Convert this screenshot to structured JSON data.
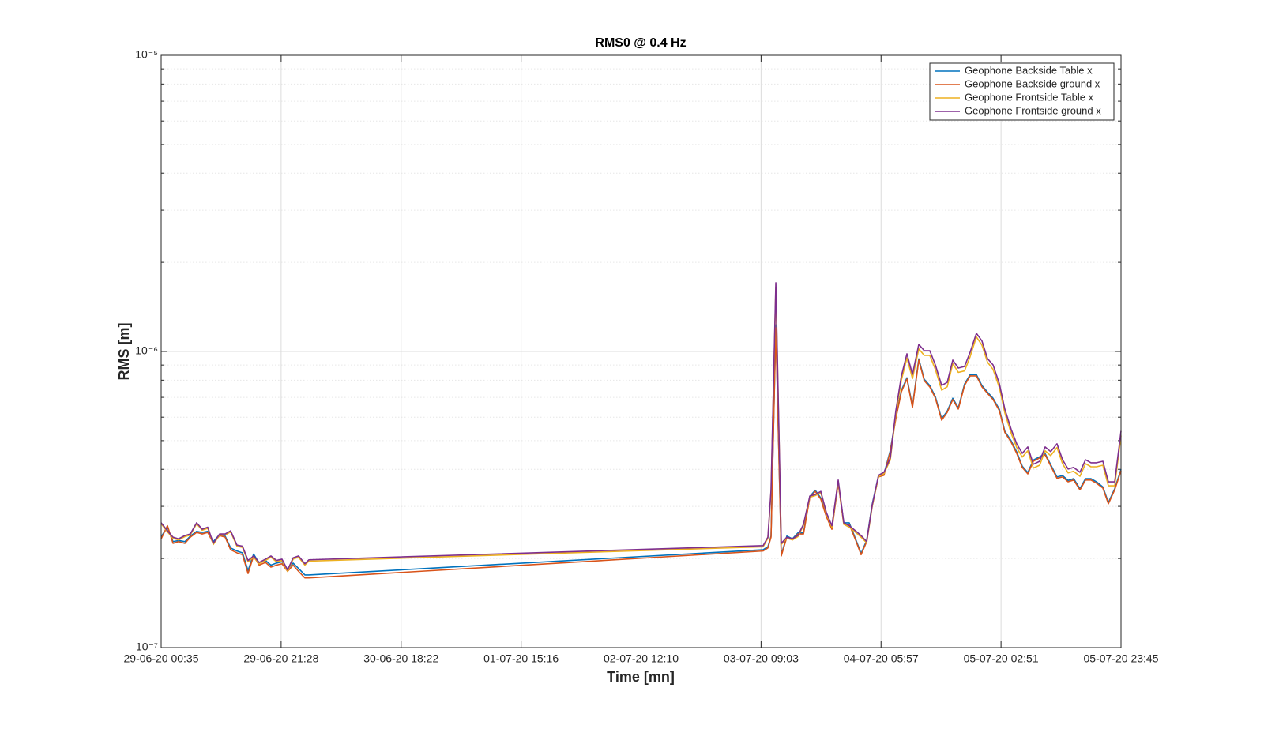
{
  "chart_data": {
    "type": "line",
    "title": "RMS0 @ 0.4 Hz",
    "x_label": "Time [mn]",
    "y_label": "RMS [m]",
    "yscale": "log",
    "grid": true,
    "legend": "northeast",
    "xlim": [
      0,
      10030
    ],
    "xticks": [
      {
        "value": 0,
        "label": "29-06-20 00:35"
      },
      {
        "value": 1253.75,
        "label": "29-06-20 21:28"
      },
      {
        "value": 2507.5,
        "label": "30-06-20 18:22"
      },
      {
        "value": 3761.25,
        "label": "01-07-20 15:16"
      },
      {
        "value": 5015,
        "label": "02-07-20 12:10"
      },
      {
        "value": 6268.75,
        "label": "03-07-20 09:03"
      },
      {
        "value": 7522.5,
        "label": "04-07-20 05:57"
      },
      {
        "value": 8776.25,
        "label": "05-07-20 02:51"
      },
      {
        "value": 10030,
        "label": "05-07-20 23:45"
      }
    ],
    "ylim": [
      1e-07,
      1e-05
    ],
    "yticks": [
      {
        "value": 1e-07,
        "label": "10⁻⁷"
      },
      {
        "value": 1e-06,
        "label": "10⁻⁶"
      },
      {
        "value": 1e-05,
        "label": "10⁻⁵"
      }
    ],
    "yminorticks": [
      2e-07,
      3e-07,
      4e-07,
      5e-07,
      6e-07,
      7e-07,
      8e-07,
      9e-07,
      2e-06,
      3e-06,
      4e-06,
      5e-06,
      6e-06,
      7e-06,
      8e-06,
      9e-06
    ],
    "x": [
      0,
      66,
      124,
      182,
      248,
      305,
      371,
      429,
      487,
      545,
      611,
      669,
      726,
      792,
      850,
      908,
      966,
      1024,
      1090,
      1147,
      1205,
      1263,
      1321,
      1379,
      1436,
      1502,
      1544,
      6290,
      6340,
      6373,
      6423,
      6480,
      6538,
      6596,
      6654,
      6712,
      6778,
      6835,
      6893,
      6951,
      7009,
      7075,
      7133,
      7190,
      7256,
      7314,
      7372,
      7430,
      7496,
      7553,
      7619,
      7677,
      7735,
      7793,
      7851,
      7917,
      7974,
      8032,
      8090,
      8156,
      8214,
      8272,
      8330,
      8395,
      8453,
      8519,
      8577,
      8635,
      8693,
      8759,
      8816,
      8882,
      8940,
      8998,
      9056,
      9114,
      9180,
      9237,
      9295,
      9361,
      9419,
      9477,
      9535,
      9601,
      9659,
      9716,
      9774,
      9840,
      9898,
      9964,
      10030
    ],
    "series": [
      {
        "name": "Geophone Backside Table x",
        "color": "#0072BD",
        "values": [
          2.37e-07,
          2.55e-07,
          2.28e-07,
          2.3e-07,
          2.28e-07,
          2.38e-07,
          2.47e-07,
          2.45e-07,
          2.47e-07,
          2.28e-07,
          2.41e-07,
          2.38e-07,
          2.17e-07,
          2.12e-07,
          2.09e-07,
          1.82e-07,
          2.07e-07,
          1.93e-07,
          1.97e-07,
          1.9e-07,
          1.93e-07,
          1.95e-07,
          1.84e-07,
          1.93e-07,
          1.85e-07,
          1.76e-07,
          1.76e-07,
          2.14e-07,
          2.19e-07,
          2.38e-07,
          1.23e-06,
          2.06e-07,
          2.38e-07,
          2.33e-07,
          2.44e-07,
          2.44e-07,
          3.24e-07,
          3.4e-07,
          3.2e-07,
          2.8e-07,
          2.53e-07,
          3.62e-07,
          2.64e-07,
          2.64e-07,
          2.33e-07,
          2.08e-07,
          2.3e-07,
          3.05e-07,
          3.81e-07,
          3.86e-07,
          4.63e-07,
          5.99e-07,
          7.38e-07,
          8.15e-07,
          6.53e-07,
          9.44e-07,
          8.05e-07,
          7.67e-07,
          7.03e-07,
          5.92e-07,
          6.29e-07,
          6.95e-07,
          6.45e-07,
          7.76e-07,
          8.35e-07,
          8.35e-07,
          7.67e-07,
          7.29e-07,
          6.95e-07,
          6.37e-07,
          5.38e-07,
          4.99e-07,
          4.58e-07,
          4.1e-07,
          3.9e-07,
          4.3e-07,
          4.41e-07,
          4.52e-07,
          4.15e-07,
          3.77e-07,
          3.81e-07,
          3.67e-07,
          3.72e-07,
          3.44e-07,
          3.72e-07,
          3.72e-07,
          3.63e-07,
          3.49e-07,
          3.09e-07,
          3.44e-07,
          4e-07
        ]
      },
      {
        "name": "Geophone Backside ground x",
        "color": "#D95319",
        "values": [
          2.33e-07,
          2.58e-07,
          2.25e-07,
          2.28e-07,
          2.25e-07,
          2.36e-07,
          2.45e-07,
          2.42e-07,
          2.45e-07,
          2.25e-07,
          2.39e-07,
          2.36e-07,
          2.14e-07,
          2.09e-07,
          2.06e-07,
          1.78e-07,
          2.04e-07,
          1.9e-07,
          1.94e-07,
          1.87e-07,
          1.9e-07,
          1.92e-07,
          1.81e-07,
          1.9e-07,
          1.81e-07,
          1.72e-07,
          1.72e-07,
          2.12e-07,
          2.17e-07,
          2.36e-07,
          1.202e-06,
          2.04e-07,
          2.36e-07,
          2.31e-07,
          2.42e-07,
          2.42e-07,
          3.21e-07,
          3.37e-07,
          3.17e-07,
          2.77e-07,
          2.51e-07,
          3.59e-07,
          2.61e-07,
          2.61e-07,
          2.31e-07,
          2.06e-07,
          2.28e-07,
          3.02e-07,
          3.77e-07,
          3.82e-07,
          4.59e-07,
          5.93e-07,
          7.31e-07,
          8.07e-07,
          6.47e-07,
          9.35e-07,
          7.97e-07,
          7.59e-07,
          6.96e-07,
          5.86e-07,
          6.23e-07,
          6.88e-07,
          6.39e-07,
          7.68e-07,
          8.27e-07,
          8.27e-07,
          7.59e-07,
          7.22e-07,
          6.88e-07,
          6.31e-07,
          5.33e-07,
          4.94e-07,
          4.53e-07,
          4.06e-07,
          3.86e-07,
          4.26e-07,
          4.37e-07,
          4.48e-07,
          4.11e-07,
          3.73e-07,
          3.77e-07,
          3.63e-07,
          3.68e-07,
          3.41e-07,
          3.68e-07,
          3.68e-07,
          3.59e-07,
          3.46e-07,
          3.06e-07,
          3.41e-07,
          3.96e-07
        ]
      },
      {
        "name": "Geophone Frontside Table x",
        "color": "#EDB120",
        "values": [
          2.62e-07,
          2.46e-07,
          2.34e-07,
          2.31e-07,
          2.37e-07,
          2.4e-07,
          2.62e-07,
          2.49e-07,
          2.53e-07,
          2.23e-07,
          2.4e-07,
          2.4e-07,
          2.46e-07,
          2.2e-07,
          2.18e-07,
          1.95e-07,
          2.02e-07,
          1.92e-07,
          1.97e-07,
          2.02e-07,
          1.95e-07,
          1.97e-07,
          1.81e-07,
          1.99e-07,
          2.02e-07,
          1.9e-07,
          1.96e-07,
          2.19e-07,
          2.34e-07,
          3.35e-07,
          1.65e-06,
          2.23e-07,
          2.34e-07,
          2.31e-07,
          2.37e-07,
          2.59e-07,
          3.22e-07,
          3.26e-07,
          3.34e-07,
          2.83e-07,
          2.55e-07,
          3.64e-07,
          2.61e-07,
          2.55e-07,
          2.45e-07,
          2.36e-07,
          2.26e-07,
          2.99e-07,
          3.78e-07,
          3.87e-07,
          4.3e-07,
          6.15e-07,
          8e-07,
          9.5e-07,
          8.1e-07,
          1.02e-06,
          9.7e-07,
          9.7e-07,
          8.7e-07,
          7.4e-07,
          7.6e-07,
          9.1e-07,
          8.5e-07,
          8.6e-07,
          9.6e-07,
          1.12e-06,
          1.05e-06,
          9.2e-07,
          8.7e-07,
          7.55e-07,
          6.2e-07,
          5.3e-07,
          4.74e-07,
          4.4e-07,
          4.62e-07,
          4.04e-07,
          4.13e-07,
          4.62e-07,
          4.45e-07,
          4.74e-07,
          4.18e-07,
          3.89e-07,
          3.94e-07,
          3.79e-07,
          4.18e-07,
          4.08e-07,
          4.08e-07,
          4.13e-07,
          3.52e-07,
          3.52e-07,
          5.2e-07
        ]
      },
      {
        "name": "Geophone Frontside ground x",
        "color": "#7E2F8E",
        "values": [
          2.64e-07,
          2.48e-07,
          2.36e-07,
          2.33e-07,
          2.39e-07,
          2.42e-07,
          2.64e-07,
          2.51e-07,
          2.55e-07,
          2.25e-07,
          2.42e-07,
          2.42e-07,
          2.48e-07,
          2.22e-07,
          2.2e-07,
          1.97e-07,
          2.04e-07,
          1.94e-07,
          1.99e-07,
          2.04e-07,
          1.97e-07,
          1.99e-07,
          1.83e-07,
          2.01e-07,
          2.04e-07,
          1.92e-07,
          1.98e-07,
          2.21e-07,
          2.36e-07,
          3.41e-07,
          1.707e-06,
          2.25e-07,
          2.36e-07,
          2.33e-07,
          2.39e-07,
          2.61e-07,
          3.25e-07,
          3.29e-07,
          3.37e-07,
          2.86e-07,
          2.58e-07,
          3.68e-07,
          2.64e-07,
          2.58e-07,
          2.48e-07,
          2.39e-07,
          2.28e-07,
          3.02e-07,
          3.82e-07,
          3.91e-07,
          4.37e-07,
          6.31e-07,
          8.27e-07,
          9.82e-07,
          8.37e-07,
          1.057e-06,
          1.006e-06,
          1.006e-06,
          9.01e-07,
          7.68e-07,
          7.87e-07,
          9.35e-07,
          8.79e-07,
          8.9e-07,
          9.94e-07,
          1.152e-06,
          1.085e-06,
          9.46e-07,
          9.01e-07,
          7.78e-07,
          6.39e-07,
          5.46e-07,
          4.88e-07,
          4.53e-07,
          4.76e-07,
          4.16e-07,
          4.26e-07,
          4.76e-07,
          4.59e-07,
          4.88e-07,
          4.31e-07,
          4.01e-07,
          4.06e-07,
          3.91e-07,
          4.31e-07,
          4.21e-07,
          4.21e-07,
          4.26e-07,
          3.63e-07,
          3.63e-07,
          5.39e-07
        ]
      }
    ]
  }
}
